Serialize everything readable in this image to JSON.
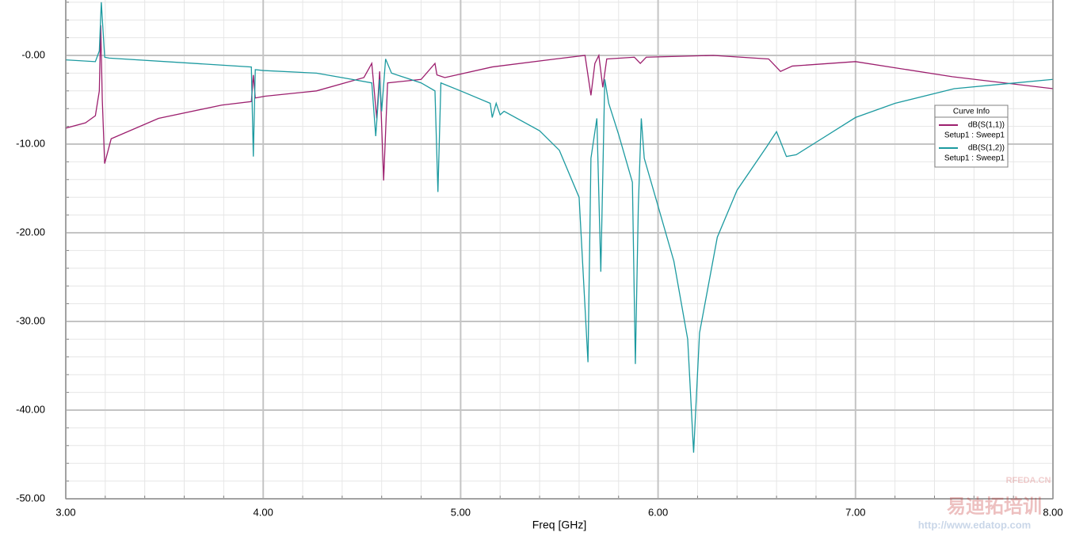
{
  "chart_data": {
    "type": "line",
    "x_label": "Freq [GHz]",
    "legend_title": "Curve Info",
    "legend_position": "upper-right",
    "grid": true,
    "minor_grid": true,
    "xlim": [
      3,
      8
    ],
    "ylim": [
      -50,
      6.25
    ],
    "xticks": [
      {
        "value": 3,
        "label": "3.00"
      },
      {
        "value": 4,
        "label": "4.00"
      },
      {
        "value": 5,
        "label": "5.00"
      },
      {
        "value": 6,
        "label": "6.00"
      },
      {
        "value": 7,
        "label": "7.00"
      },
      {
        "value": 8,
        "label": "8.00"
      }
    ],
    "yticks": [
      {
        "value": -50,
        "label": "-50.00"
      },
      {
        "value": -40,
        "label": "-40.00"
      },
      {
        "value": -30,
        "label": "-30.00"
      },
      {
        "value": -20,
        "label": "-20.00"
      },
      {
        "value": -10,
        "label": "-10.00"
      },
      {
        "value": 0,
        "label": "-0.00"
      }
    ],
    "series": [
      {
        "name": "dB(S(1,1))",
        "sweep": "Setup1 : Sweep1",
        "color": "#9c1f6e",
        "x": [
          3.0,
          3.1,
          3.15,
          3.17,
          3.177,
          3.185,
          3.197,
          3.23,
          3.47,
          3.79,
          3.94,
          3.95,
          3.96,
          4.01,
          4.27,
          4.51,
          4.55,
          4.575,
          4.59,
          4.61,
          4.63,
          4.8,
          4.87,
          4.88,
          4.92,
          5.16,
          5.48,
          5.63,
          5.66,
          5.68,
          5.7,
          5.72,
          5.74,
          5.88,
          5.91,
          5.94,
          6.28,
          6.56,
          6.62,
          6.68,
          7.0,
          7.49,
          8.0
        ],
        "values": [
          -8.2,
          -7.6,
          -6.8,
          -4.0,
          3.4,
          -5.0,
          -12.2,
          -9.4,
          -7.1,
          -5.6,
          -5.2,
          -2.2,
          -4.8,
          -4.6,
          -4.0,
          -2.5,
          -0.9,
          -7.1,
          -1.8,
          -14.1,
          -3.1,
          -2.7,
          -0.9,
          -2.2,
          -2.5,
          -1.3,
          -0.4,
          0.0,
          -4.5,
          -0.9,
          0.0,
          -3.6,
          -0.4,
          -0.2,
          -0.9,
          -0.2,
          0.0,
          -0.4,
          -1.8,
          -1.2,
          -0.7,
          -2.4,
          -3.75
        ]
      },
      {
        "name": "dB(S(1,2))",
        "sweep": "Setup1 : Sweep1",
        "color": "#1c9aa0",
        "x": [
          3.0,
          3.15,
          3.17,
          3.18,
          3.197,
          3.22,
          3.94,
          3.95,
          3.96,
          4.0,
          4.27,
          4.45,
          4.55,
          4.57,
          4.59,
          4.6,
          4.62,
          4.65,
          4.8,
          4.87,
          4.885,
          4.9,
          5.0,
          5.15,
          5.16,
          5.18,
          5.2,
          5.22,
          5.4,
          5.5,
          5.6,
          5.645,
          5.66,
          5.69,
          5.71,
          5.73,
          5.75,
          5.8,
          5.87,
          5.885,
          5.9,
          5.915,
          5.93,
          6.0,
          6.08,
          6.15,
          6.18,
          6.21,
          6.3,
          6.4,
          6.55,
          6.6,
          6.65,
          6.7,
          6.8,
          7.0,
          7.2,
          7.5,
          8.0
        ],
        "values": [
          -0.5,
          -0.7,
          0.5,
          6.0,
          -0.2,
          -0.3,
          -1.3,
          -11.4,
          -1.6,
          -1.7,
          -2.0,
          -2.7,
          -3.1,
          -9.1,
          -2.7,
          -6.3,
          -0.4,
          -2.0,
          -3.1,
          -4.0,
          -15.4,
          -3.1,
          -4.0,
          -5.4,
          -7.0,
          -5.4,
          -6.7,
          -6.3,
          -8.5,
          -10.7,
          -16.0,
          -34.6,
          -11.6,
          -7.1,
          -24.4,
          -2.7,
          -5.4,
          -8.9,
          -14.3,
          -34.8,
          -17.0,
          -7.1,
          -11.6,
          -17.0,
          -23.2,
          -32.0,
          -44.8,
          -31.3,
          -20.5,
          -15.2,
          -10.3,
          -8.6,
          -11.4,
          -11.2,
          -9.8,
          -7.0,
          -5.4,
          -3.75,
          -2.7
        ]
      }
    ],
    "watermark": [
      "RFEDA.CN",
      "易迪拓培训",
      "http://www.edatop.com"
    ]
  }
}
